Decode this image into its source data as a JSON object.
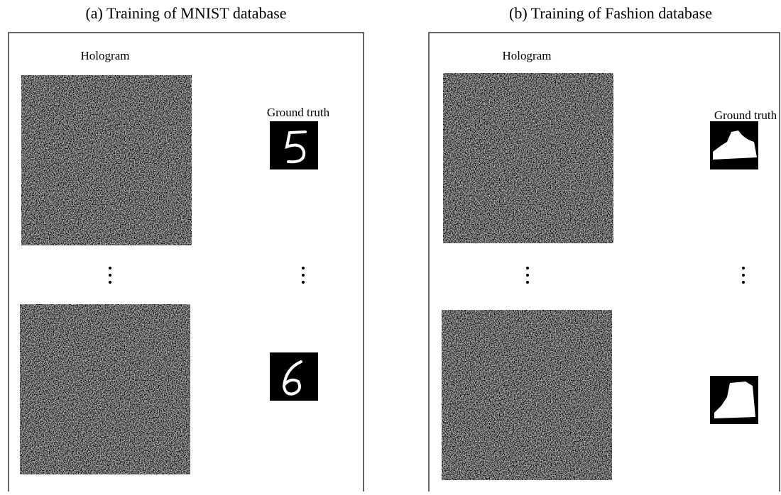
{
  "panels": [
    {
      "title": "(a) Training of MNIST database",
      "hologram_label": "Hologram",
      "ground_truth_label": "Ground truth"
    },
    {
      "title": "(b) Training of Fashion database",
      "hologram_label": "Hologram",
      "ground_truth_label": "Ground truth"
    }
  ]
}
